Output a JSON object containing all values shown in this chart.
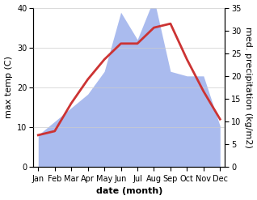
{
  "months": [
    "Jan",
    "Feb",
    "Mar",
    "Apr",
    "May",
    "Jun",
    "Jul",
    "Aug",
    "Sep",
    "Oct",
    "Nov",
    "Dec"
  ],
  "temperature": [
    8,
    9,
    16,
    22,
    27,
    31,
    31,
    35,
    36,
    27,
    19,
    12
  ],
  "precipitation": [
    7,
    10,
    13,
    16,
    21,
    34,
    28,
    37,
    21,
    20,
    20,
    9
  ],
  "temp_color": "#cc3333",
  "precip_color": "#aabbee",
  "temp_ylim": [
    0,
    40
  ],
  "precip_ylim": [
    0,
    35
  ],
  "temp_yticks": [
    0,
    10,
    20,
    30,
    40
  ],
  "precip_yticks": [
    0,
    5,
    10,
    15,
    20,
    25,
    30,
    35
  ],
  "ylabel_left": "max temp (C)",
  "ylabel_right": "med. precipitation (kg/m2)",
  "xlabel": "date (month)",
  "background_color": "#ffffff",
  "line_width": 2.0,
  "label_fontsize": 8,
  "tick_fontsize": 7
}
